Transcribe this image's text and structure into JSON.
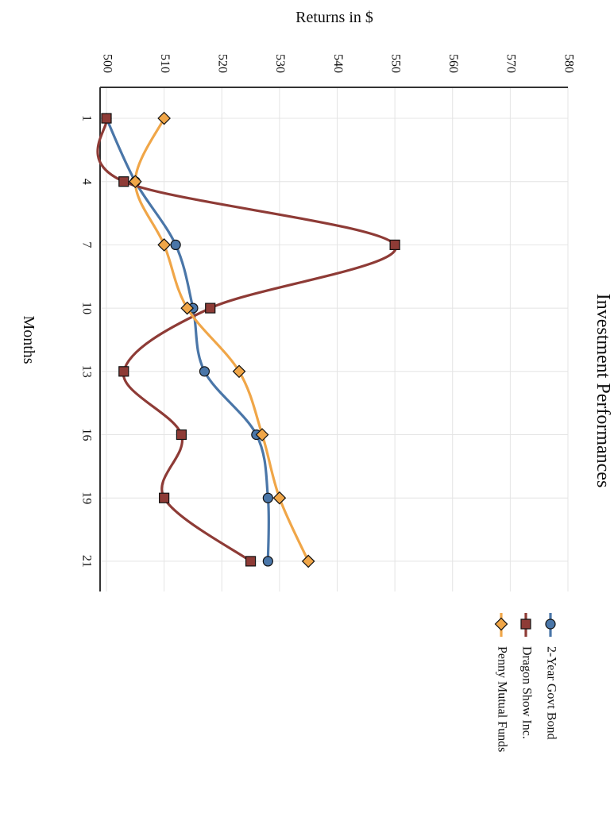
{
  "chart_data": {
    "type": "line",
    "title": "Investment Performances",
    "xlabel": "Months",
    "ylabel": "Returns in $",
    "x": [
      1,
      4,
      7,
      10,
      13,
      16,
      19,
      21
    ],
    "x_tick_labels": [
      "1",
      "4",
      "7",
      "10",
      "13",
      "16",
      "19",
      "21"
    ],
    "y_ticks": [
      500,
      510,
      520,
      530,
      540,
      550,
      560,
      570,
      580
    ],
    "ylim": [
      500,
      580
    ],
    "grid": true,
    "legend_position": "bottom-right",
    "orientation": "rotated-90",
    "series": [
      {
        "name": "2-Year Govt Bond",
        "marker": "circle",
        "color": "#4a76a8",
        "values": [
          500,
          505,
          512,
          515,
          517,
          526,
          528,
          528
        ]
      },
      {
        "name": "Dragon Show Inc.",
        "marker": "square",
        "color": "#8e3b36",
        "values": [
          500,
          503,
          550,
          518,
          503,
          513,
          510,
          525
        ]
      },
      {
        "name": "Penny Mutual Funds",
        "marker": "diamond",
        "color": "#f0a648",
        "values": [
          510,
          505,
          510,
          514,
          523,
          527,
          530,
          535
        ]
      }
    ]
  }
}
